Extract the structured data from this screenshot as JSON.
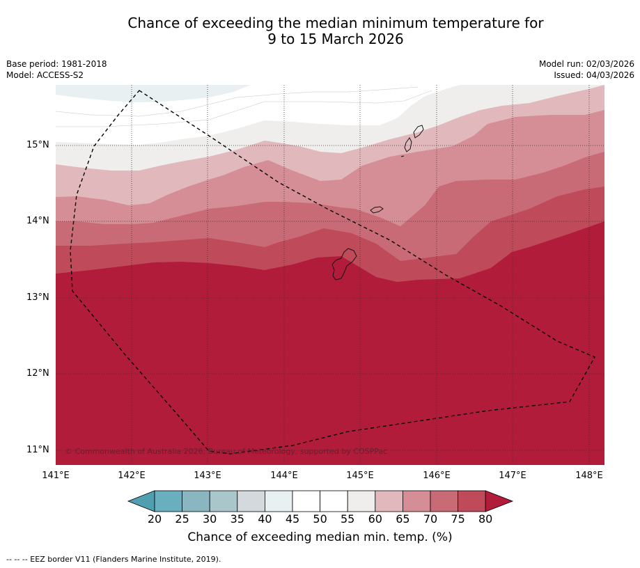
{
  "title_line1": "Chance of exceeding the median minimum temperature for",
  "title_line2": "9 to 15 March 2026",
  "base_period": "Base period: 1981-2018",
  "model": "Model: ACCESS-S2",
  "model_run": "Model run: 02/03/2026",
  "issued": "Issued: 04/03/2026",
  "lat_labels": [
    "15°N",
    "14°N",
    "13°N",
    "12°N",
    "11°N"
  ],
  "lon_labels": [
    "141°E",
    "142°E",
    "143°E",
    "144°E",
    "145°E",
    "146°E",
    "147°E",
    "148°E"
  ],
  "copyright": "© Commonwealth of Australia 2026, Bureau of Meteorology, supported by COSPPac",
  "colorbar": {
    "ticks": [
      "20",
      "25",
      "30",
      "35",
      "40",
      "45",
      "50",
      "55",
      "60",
      "65",
      "70",
      "75",
      "80"
    ],
    "colors": [
      "#4f9fb0",
      "#6aafbd",
      "#8ab6c1",
      "#a9c6ca",
      "#d3d9dc",
      "#e8f0f1",
      "#ffffff",
      "#ffffff",
      "#efeeed",
      "#e1b9bd",
      "#d58e96",
      "#c96b76",
      "#bf4a5a",
      "#b21c3b"
    ],
    "label": "Chance of exceeding median min. temp. (%)"
  },
  "footer": "--  --  -- EEZ border V11 (Flanders Marine Institute, 2019)."
}
